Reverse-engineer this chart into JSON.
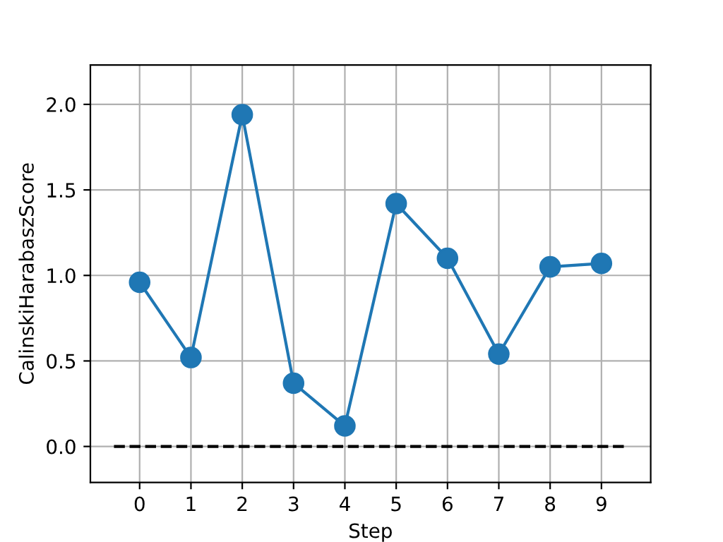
{
  "chart_data": {
    "type": "line",
    "xlabel": "Step",
    "ylabel": "CalinskiHarabaszScore",
    "x": [
      0,
      1,
      2,
      3,
      4,
      5,
      6,
      7,
      8,
      9
    ],
    "series": [
      {
        "color": "#1f77b4",
        "values": [
          0.96,
          0.52,
          1.94,
          0.37,
          0.12,
          1.42,
          1.1,
          0.54,
          1.05,
          1.07
        ]
      }
    ],
    "marker": "circle",
    "line_style": "solid",
    "grid": true,
    "xlim": [
      -0.96,
      9.96
    ],
    "xticks": [
      0,
      1,
      2,
      3,
      4,
      5,
      6,
      7,
      8,
      9
    ],
    "ylim": [
      -0.21,
      2.23
    ],
    "yticks": [
      {
        "value": 0,
        "label": "0.0"
      },
      0.5,
      {
        "value": 1,
        "label": "1.0"
      },
      1.5,
      {
        "value": 2,
        "label": "2.0"
      }
    ],
    "ref_lines": [
      {
        "axis": "y",
        "value": 0,
        "color": "#000000",
        "line_style": "dashed"
      }
    ]
  }
}
